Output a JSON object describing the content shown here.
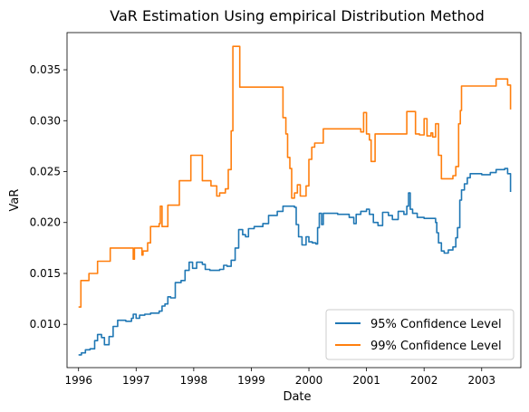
{
  "chart_data": {
    "type": "line",
    "title": "VaR Estimation Using empirical Distribution Method",
    "xlabel": "Date",
    "ylabel": "VaR",
    "xlim": [
      1995.8,
      2003.68
    ],
    "ylim": [
      0.00575,
      0.03865
    ],
    "x_ticks": [
      {
        "value": 1996,
        "label": "1996"
      },
      {
        "value": 1997,
        "label": "1997"
      },
      {
        "value": 1998,
        "label": "1998"
      },
      {
        "value": 1999,
        "label": "1999"
      },
      {
        "value": 2000,
        "label": "2000"
      },
      {
        "value": 2001,
        "label": "2001"
      },
      {
        "value": 2002,
        "label": "2002"
      },
      {
        "value": 2003,
        "label": "2003"
      }
    ],
    "y_ticks": [
      {
        "value": 0.01,
        "label": "0.010"
      },
      {
        "value": 0.015,
        "label": "0.015"
      },
      {
        "value": 0.02,
        "label": "0.020"
      },
      {
        "value": 0.025,
        "label": "0.025"
      },
      {
        "value": 0.03,
        "label": "0.030"
      },
      {
        "value": 0.035,
        "label": "0.035"
      }
    ],
    "grid": false,
    "legend_position": "lower-right",
    "series": [
      {
        "name": "95% Confidence Level",
        "color": "#1f77b4",
        "step": true,
        "points": [
          [
            1996.0,
            0.007
          ],
          [
            1996.05,
            0.0072
          ],
          [
            1996.12,
            0.0075
          ],
          [
            1996.2,
            0.0076
          ],
          [
            1996.28,
            0.0084
          ],
          [
            1996.33,
            0.009
          ],
          [
            1996.4,
            0.0087
          ],
          [
            1996.45,
            0.008
          ],
          [
            1996.53,
            0.0088
          ],
          [
            1996.6,
            0.0098
          ],
          [
            1996.68,
            0.0104
          ],
          [
            1996.82,
            0.0103
          ],
          [
            1996.92,
            0.0106
          ],
          [
            1996.95,
            0.011
          ],
          [
            1997.0,
            0.0106
          ],
          [
            1997.06,
            0.0109
          ],
          [
            1997.15,
            0.011
          ],
          [
            1997.25,
            0.0111
          ],
          [
            1997.4,
            0.0113
          ],
          [
            1997.45,
            0.0118
          ],
          [
            1997.5,
            0.012
          ],
          [
            1997.55,
            0.0127
          ],
          [
            1997.6,
            0.0126
          ],
          [
            1997.68,
            0.0141
          ],
          [
            1997.78,
            0.0143
          ],
          [
            1997.85,
            0.0153
          ],
          [
            1997.92,
            0.0161
          ],
          [
            1997.98,
            0.0155
          ],
          [
            1998.05,
            0.0161
          ],
          [
            1998.15,
            0.0159
          ],
          [
            1998.2,
            0.0154
          ],
          [
            1998.28,
            0.0153
          ],
          [
            1998.45,
            0.0154
          ],
          [
            1998.52,
            0.0158
          ],
          [
            1998.58,
            0.0157
          ],
          [
            1998.65,
            0.0163
          ],
          [
            1998.72,
            0.0175
          ],
          [
            1998.78,
            0.0193
          ],
          [
            1998.85,
            0.0188
          ],
          [
            1998.9,
            0.0186
          ],
          [
            1998.95,
            0.0194
          ],
          [
            1999.05,
            0.0196
          ],
          [
            1999.2,
            0.0199
          ],
          [
            1999.3,
            0.0207
          ],
          [
            1999.45,
            0.0211
          ],
          [
            1999.55,
            0.0216
          ],
          [
            1999.75,
            0.0215
          ],
          [
            1999.78,
            0.0198
          ],
          [
            1999.82,
            0.0186
          ],
          [
            1999.88,
            0.0178
          ],
          [
            1999.95,
            0.0186
          ],
          [
            2000.0,
            0.0181
          ],
          [
            2000.06,
            0.018
          ],
          [
            2000.12,
            0.0179
          ],
          [
            2000.15,
            0.0195
          ],
          [
            2000.18,
            0.0209
          ],
          [
            2000.22,
            0.0198
          ],
          [
            2000.25,
            0.0209
          ],
          [
            2000.5,
            0.0208
          ],
          [
            2000.7,
            0.0205
          ],
          [
            2000.78,
            0.0199
          ],
          [
            2000.82,
            0.0208
          ],
          [
            2000.9,
            0.0211
          ],
          [
            2001.0,
            0.0213
          ],
          [
            2001.05,
            0.0208
          ],
          [
            2001.12,
            0.02
          ],
          [
            2001.2,
            0.0197
          ],
          [
            2001.28,
            0.021
          ],
          [
            2001.38,
            0.0207
          ],
          [
            2001.45,
            0.0203
          ],
          [
            2001.55,
            0.0211
          ],
          [
            2001.65,
            0.0208
          ],
          [
            2001.7,
            0.0216
          ],
          [
            2001.73,
            0.0229
          ],
          [
            2001.76,
            0.0213
          ],
          [
            2001.8,
            0.0209
          ],
          [
            2001.88,
            0.0205
          ],
          [
            2002.0,
            0.0204
          ],
          [
            2002.2,
            0.02
          ],
          [
            2002.22,
            0.019
          ],
          [
            2002.25,
            0.018
          ],
          [
            2002.3,
            0.0172
          ],
          [
            2002.35,
            0.017
          ],
          [
            2002.42,
            0.0173
          ],
          [
            2002.5,
            0.0176
          ],
          [
            2002.55,
            0.0185
          ],
          [
            2002.58,
            0.0195
          ],
          [
            2002.62,
            0.0222
          ],
          [
            2002.65,
            0.0232
          ],
          [
            2002.7,
            0.0238
          ],
          [
            2002.75,
            0.0244
          ],
          [
            2002.8,
            0.0248
          ],
          [
            2003.0,
            0.0247
          ],
          [
            2003.15,
            0.0249
          ],
          [
            2003.25,
            0.0252
          ],
          [
            2003.4,
            0.0253
          ],
          [
            2003.45,
            0.0248
          ],
          [
            2003.5,
            0.023
          ]
        ]
      },
      {
        "name": "99% Confidence Level",
        "color": "#ff7f0e",
        "step": true,
        "points": [
          [
            1996.0,
            0.0117
          ],
          [
            1996.04,
            0.0143
          ],
          [
            1996.18,
            0.015
          ],
          [
            1996.33,
            0.0162
          ],
          [
            1996.55,
            0.0175
          ],
          [
            1996.95,
            0.0164
          ],
          [
            1996.97,
            0.0175
          ],
          [
            1997.1,
            0.0168
          ],
          [
            1997.12,
            0.0172
          ],
          [
            1997.2,
            0.018
          ],
          [
            1997.25,
            0.0196
          ],
          [
            1997.4,
            0.0199
          ],
          [
            1997.42,
            0.0216
          ],
          [
            1997.45,
            0.0196
          ],
          [
            1997.55,
            0.0217
          ],
          [
            1997.75,
            0.0241
          ],
          [
            1997.95,
            0.0266
          ],
          [
            1998.15,
            0.0241
          ],
          [
            1998.3,
            0.0236
          ],
          [
            1998.4,
            0.0226
          ],
          [
            1998.45,
            0.0229
          ],
          [
            1998.55,
            0.0233
          ],
          [
            1998.6,
            0.0252
          ],
          [
            1998.65,
            0.029
          ],
          [
            1998.68,
            0.0373
          ],
          [
            1998.8,
            0.0333
          ],
          [
            1999.55,
            0.0303
          ],
          [
            1999.6,
            0.0287
          ],
          [
            1999.63,
            0.0264
          ],
          [
            1999.67,
            0.0253
          ],
          [
            1999.7,
            0.0224
          ],
          [
            1999.75,
            0.0229
          ],
          [
            1999.8,
            0.0237
          ],
          [
            1999.85,
            0.0226
          ],
          [
            1999.95,
            0.0236
          ],
          [
            2000.0,
            0.0262
          ],
          [
            2000.05,
            0.0274
          ],
          [
            2000.1,
            0.0278
          ],
          [
            2000.25,
            0.0292
          ],
          [
            2000.9,
            0.0289
          ],
          [
            2000.95,
            0.0308
          ],
          [
            2001.0,
            0.0287
          ],
          [
            2001.05,
            0.0281
          ],
          [
            2001.08,
            0.026
          ],
          [
            2001.15,
            0.0287
          ],
          [
            2001.7,
            0.0309
          ],
          [
            2001.85,
            0.0287
          ],
          [
            2001.92,
            0.0286
          ],
          [
            2002.0,
            0.0302
          ],
          [
            2002.05,
            0.0285
          ],
          [
            2002.12,
            0.0288
          ],
          [
            2002.15,
            0.0284
          ],
          [
            2002.2,
            0.0297
          ],
          [
            2002.25,
            0.0266
          ],
          [
            2002.3,
            0.0243
          ],
          [
            2002.5,
            0.0246
          ],
          [
            2002.55,
            0.0255
          ],
          [
            2002.6,
            0.0297
          ],
          [
            2002.63,
            0.031
          ],
          [
            2002.65,
            0.0334
          ],
          [
            2003.25,
            0.0341
          ],
          [
            2003.45,
            0.0335
          ],
          [
            2003.5,
            0.0311
          ]
        ]
      }
    ]
  }
}
